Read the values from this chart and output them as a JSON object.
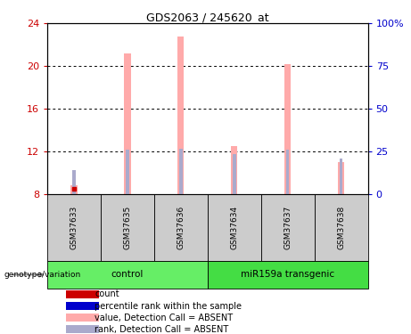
{
  "title": "GDS2063 / 245620_at",
  "samples": [
    "GSM37633",
    "GSM37635",
    "GSM37636",
    "GSM37634",
    "GSM37637",
    "GSM37638"
  ],
  "pink_bar_values": [
    8.8,
    21.2,
    22.8,
    12.5,
    20.2,
    11.0
  ],
  "blue_dot_values": [
    10.2,
    12.1,
    12.2,
    11.7,
    12.1,
    11.3
  ],
  "red_dot_value": 8.5,
  "red_dot_index": 0,
  "blue_dot_index": 0,
  "ylim_left": [
    8,
    24
  ],
  "ylim_right": [
    0,
    100
  ],
  "yticks_left": [
    8,
    12,
    16,
    20,
    24
  ],
  "yticks_right": [
    0,
    25,
    50,
    75,
    100
  ],
  "ytick_labels_right": [
    "0",
    "25",
    "50",
    "75",
    "100%"
  ],
  "left_axis_color": "#cc0000",
  "right_axis_color": "#0000cc",
  "bar_bottom": 8,
  "pink_color": "#ffaaaa",
  "blue_color": "#aaaacc",
  "red_color": "#cc0000",
  "dark_blue_color": "#0000cc",
  "legend_items": [
    {
      "label": "count",
      "color": "#cc0000"
    },
    {
      "label": "percentile rank within the sample",
      "color": "#0000cc"
    },
    {
      "label": "value, Detection Call = ABSENT",
      "color": "#ffaaaa"
    },
    {
      "label": "rank, Detection Call = ABSENT",
      "color": "#aaaacc"
    }
  ],
  "groups_info": [
    {
      "label": "control",
      "start": 0,
      "end": 3,
      "color": "#66ee66"
    },
    {
      "label": "miR159a transgenic",
      "start": 3,
      "end": 6,
      "color": "#44dd44"
    }
  ],
  "sample_bg_color": "#cccccc",
  "background_color": "white",
  "plot_bg_color": "white",
  "pink_bar_width": 0.12,
  "blue_bar_width": 0.06
}
